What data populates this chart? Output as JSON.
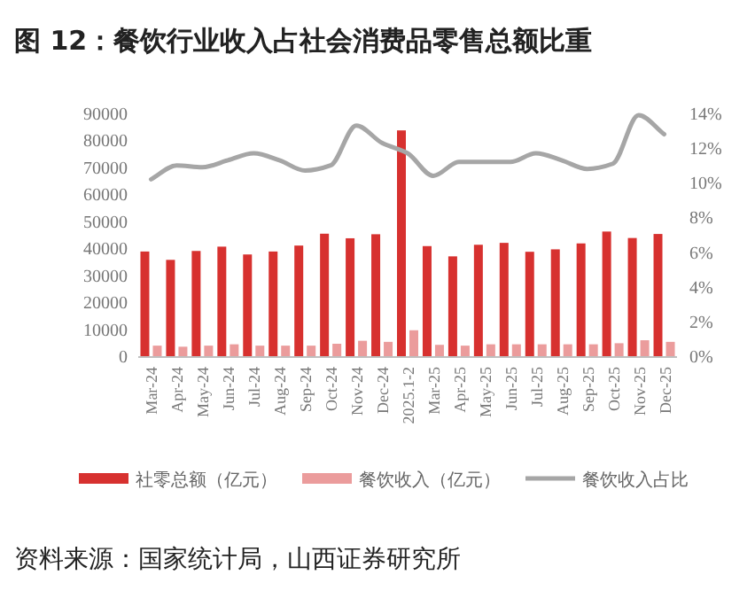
{
  "chart_data": {
    "type": "bar",
    "title": "图 12：餐饮行业收入占社会消费品零售总额比重",
    "categories": [
      "Mar-24",
      "Apr-24",
      "May-24",
      "Jun-24",
      "Jul-24",
      "Aug-24",
      "Sep-24",
      "Oct-24",
      "Nov-24",
      "Dec-24",
      "2025.1-2",
      "Mar-25",
      "Apr-25",
      "May-25",
      "Jun-25",
      "Jul-25",
      "Aug-25",
      "Sep-25",
      "Oct-25",
      "Nov-25",
      "Dec-25"
    ],
    "series": [
      {
        "name": "社零总额（亿元）",
        "color": "#d7312f",
        "values": [
          38800,
          35700,
          39000,
          40600,
          37700,
          38800,
          41000,
          45400,
          43700,
          45200,
          83700,
          40800,
          37000,
          41300,
          42000,
          38700,
          39600,
          41800,
          46200,
          43800,
          45300
        ]
      },
      {
        "name": "餐饮收入（亿元）",
        "color": "#eb9c9c",
        "values": [
          3900,
          3500,
          3900,
          4400,
          3900,
          3900,
          3900,
          4600,
          5700,
          5300,
          9600,
          4200,
          3900,
          4400,
          4400,
          4400,
          4400,
          4400,
          4800,
          5900,
          5300
        ]
      },
      {
        "name": "餐饮收入占比",
        "type": "line",
        "axis": "y2",
        "color": "#a6a6a6",
        "values": [
          10.2,
          11.0,
          10.9,
          11.3,
          11.7,
          11.3,
          10.7,
          11.0,
          13.3,
          12.3,
          11.7,
          10.4,
          11.2,
          11.2,
          11.2,
          11.7,
          11.3,
          10.8,
          11.1,
          13.9,
          12.8
        ]
      }
    ],
    "ylim": [
      0,
      90000
    ],
    "yticks": [
      0,
      10000,
      20000,
      30000,
      40000,
      50000,
      60000,
      70000,
      80000,
      90000
    ],
    "y2lim": [
      0,
      14
    ],
    "y2ticks": [
      {
        "value": 0,
        "label": "0%"
      },
      {
        "value": 2,
        "label": "2%"
      },
      {
        "value": 4,
        "label": "4%"
      },
      {
        "value": 6,
        "label": "6%"
      },
      {
        "value": 8,
        "label": "8%"
      },
      {
        "value": 10,
        "label": "10%"
      },
      {
        "value": 12,
        "label": "12%"
      },
      {
        "value": 14,
        "label": "14%"
      }
    ],
    "legend": "bottom",
    "annotations": [
      "资料来源：国家统计局，山西证券研究所"
    ]
  }
}
